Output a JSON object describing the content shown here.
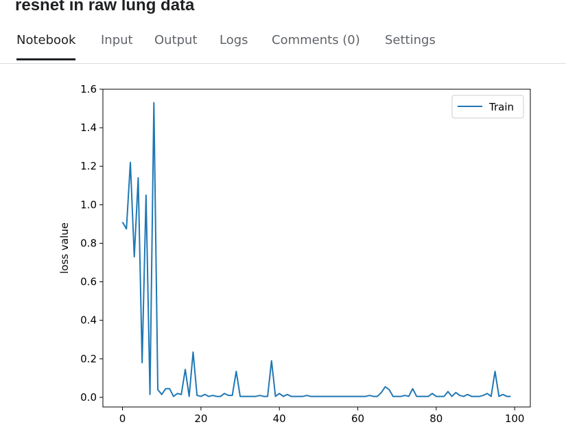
{
  "notebook": {
    "title": "resnet in raw lung data"
  },
  "tabs": [
    {
      "label": "Notebook",
      "active": true
    },
    {
      "label": "Input",
      "active": false
    },
    {
      "label": "Output",
      "active": false
    },
    {
      "label": "Logs",
      "active": false
    },
    {
      "label": "Comments (0)",
      "active": false
    },
    {
      "label": "Settings",
      "active": false
    }
  ],
  "colors": {
    "series": "#1f77b4",
    "axis": "#000000",
    "tab_active": "#202124",
    "tab_inactive": "#5f6368"
  },
  "chart_data": {
    "type": "line",
    "title": "",
    "xlabel": "",
    "ylabel": "loss value",
    "xlim": [
      -5,
      104
    ],
    "ylim": [
      -0.05,
      1.6
    ],
    "xticks": [
      0,
      20,
      40,
      60,
      80,
      100
    ],
    "yticks": [
      0.0,
      0.2,
      0.4,
      0.6,
      0.8,
      1.0,
      1.2,
      1.4,
      1.6
    ],
    "xtick_labels": [
      "0",
      "20",
      "40",
      "60",
      "80",
      "100"
    ],
    "ytick_labels": [
      "0.0",
      "0.2",
      "0.4",
      "0.6",
      "0.8",
      "1.0",
      "1.2",
      "1.4",
      "1.6"
    ],
    "grid": false,
    "legend": "top-right",
    "series": [
      {
        "name": "Train",
        "x": [
          0,
          1,
          2,
          3,
          4,
          5,
          6,
          7,
          8,
          9,
          10,
          11,
          12,
          13,
          14,
          15,
          16,
          17,
          18,
          19,
          20,
          21,
          22,
          23,
          24,
          25,
          26,
          27,
          28,
          29,
          30,
          31,
          32,
          33,
          34,
          35,
          36,
          37,
          38,
          39,
          40,
          41,
          42,
          43,
          44,
          45,
          46,
          47,
          48,
          49,
          50,
          51,
          52,
          53,
          54,
          55,
          56,
          57,
          58,
          59,
          60,
          61,
          62,
          63,
          64,
          65,
          66,
          67,
          68,
          69,
          70,
          71,
          72,
          73,
          74,
          75,
          76,
          77,
          78,
          79,
          80,
          81,
          82,
          83,
          84,
          85,
          86,
          87,
          88,
          89,
          90,
          91,
          92,
          93,
          94,
          95,
          96,
          97,
          98,
          99
        ],
        "values": [
          0.91,
          0.875,
          1.22,
          0.73,
          1.14,
          0.18,
          1.05,
          0.015,
          1.53,
          0.04,
          0.015,
          0.045,
          0.045,
          0.005,
          0.02,
          0.015,
          0.145,
          0.005,
          0.235,
          0.01,
          0.005,
          0.015,
          0.005,
          0.01,
          0.005,
          0.005,
          0.02,
          0.01,
          0.01,
          0.135,
          0.005,
          0.005,
          0.005,
          0.005,
          0.005,
          0.01,
          0.005,
          0.005,
          0.19,
          0.005,
          0.02,
          0.005,
          0.015,
          0.005,
          0.005,
          0.005,
          0.005,
          0.01,
          0.005,
          0.005,
          0.005,
          0.005,
          0.005,
          0.005,
          0.005,
          0.005,
          0.005,
          0.005,
          0.005,
          0.005,
          0.005,
          0.005,
          0.005,
          0.01,
          0.005,
          0.005,
          0.025,
          0.055,
          0.04,
          0.005,
          0.005,
          0.005,
          0.01,
          0.005,
          0.045,
          0.005,
          0.005,
          0.005,
          0.005,
          0.02,
          0.005,
          0.005,
          0.005,
          0.03,
          0.005,
          0.025,
          0.01,
          0.005,
          0.015,
          0.005,
          0.005,
          0.005,
          0.01,
          0.02,
          0.005,
          0.135,
          0.005,
          0.015,
          0.005,
          0.005
        ]
      }
    ]
  }
}
